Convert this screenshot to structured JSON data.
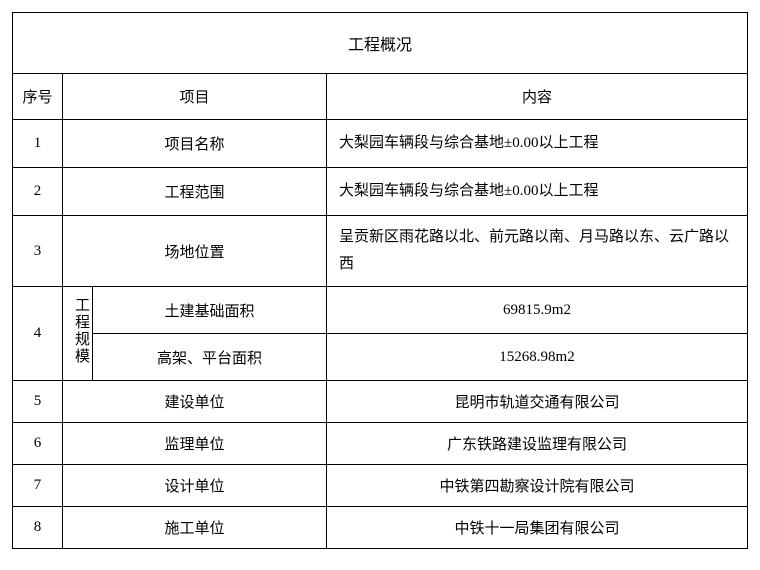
{
  "table": {
    "title": "工程概况",
    "headers": {
      "seq": "序号",
      "item": "项目",
      "content": "内容"
    },
    "rows": [
      {
        "seq": "1",
        "item": "项目名称",
        "content": "大梨园车辆段与综合基地±0.00以上工程"
      },
      {
        "seq": "2",
        "item": "工程范围",
        "content": "大梨园车辆段与综合基地±0.00以上工程"
      },
      {
        "seq": "3",
        "item": "场地位置",
        "content": "呈贡新区雨花路以北、前元路以南、月马路以东、云广路以西"
      },
      {
        "seq": "4",
        "group_label": "工程规模",
        "sub": [
          {
            "item": "土建基础面积",
            "content": "69815.9m2"
          },
          {
            "item": "高架、平台面积",
            "content": "15268.98m2"
          }
        ]
      },
      {
        "seq": "5",
        "item": "建设单位",
        "content": "昆明市轨道交通有限公司"
      },
      {
        "seq": "6",
        "item": "监理单位",
        "content": "广东铁路建设监理有限公司"
      },
      {
        "seq": "7",
        "item": "设计单位",
        "content": "中铁第四勘察设计院有限公司"
      },
      {
        "seq": "8",
        "item": "施工单位",
        "content": "中铁十一局集团有限公司"
      }
    ]
  },
  "colors": {
    "border": "#000000",
    "text": "#000000",
    "background": "#ffffff"
  }
}
